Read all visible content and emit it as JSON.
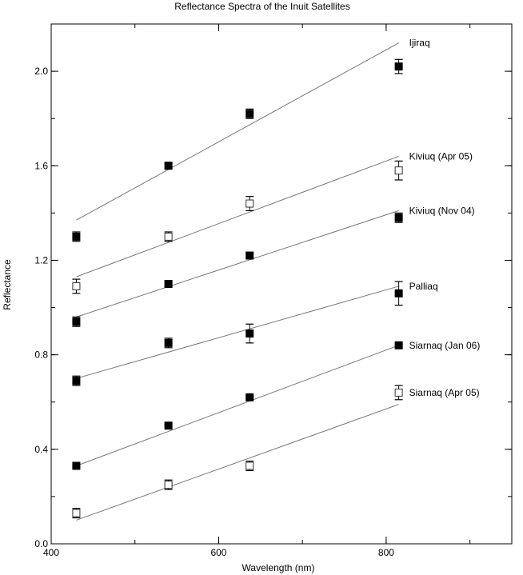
{
  "chart_data": {
    "type": "scatter",
    "title": "Reflectance Spectra of the Inuit Satellites",
    "xlabel": "Wavelength (nm)",
    "ylabel": "Reflectance",
    "xlim": [
      400,
      950
    ],
    "ylim": [
      0.0,
      2.2
    ],
    "xticks": [
      400,
      600,
      800
    ],
    "yticks": [
      0.0,
      0.4,
      0.8,
      1.2,
      1.6,
      2.0
    ],
    "xtick_labels": [
      "400",
      "600",
      "800"
    ],
    "ytick_labels": [
      "0.0",
      "0.4",
      "0.8",
      "1.2",
      "1.6",
      "2.0"
    ],
    "x_minor_step": 100,
    "y_minor_step": 0.2,
    "grid": false,
    "marker_colors": {
      "filled": "#000000",
      "open": "#ffffff",
      "line": "#777777"
    },
    "series": [
      {
        "name": "Ijiraq",
        "marker": "filled",
        "x": [
          430,
          540,
          637,
          815
        ],
        "y": [
          1.3,
          1.6,
          1.82,
          2.02
        ],
        "err": [
          0.02,
          0.01,
          0.02,
          0.03
        ],
        "fit": [
          [
            430,
            1.37
          ],
          [
            815,
            2.12
          ]
        ]
      },
      {
        "name": "Kiviuq (Apr 05)",
        "marker": "open",
        "x": [
          430,
          540,
          637,
          815
        ],
        "y": [
          1.09,
          1.3,
          1.44,
          1.58
        ],
        "err": [
          0.03,
          0.02,
          0.03,
          0.04
        ],
        "fit": [
          [
            430,
            1.13
          ],
          [
            815,
            1.64
          ]
        ]
      },
      {
        "name": "Kiviuq (Nov 04)",
        "marker": "filled",
        "x": [
          430,
          540,
          637,
          815
        ],
        "y": [
          0.94,
          1.1,
          1.22,
          1.38
        ],
        "err": [
          0.02,
          0.01,
          0.01,
          0.02
        ],
        "fit": [
          [
            430,
            0.96
          ],
          [
            815,
            1.41
          ]
        ]
      },
      {
        "name": "Palliaq",
        "marker": "filled",
        "x": [
          430,
          540,
          637,
          815
        ],
        "y": [
          0.69,
          0.85,
          0.89,
          1.06
        ],
        "err": [
          0.02,
          0.02,
          0.04,
          0.05
        ],
        "fit": [
          [
            430,
            0.7
          ],
          [
            815,
            1.09
          ]
        ]
      },
      {
        "name": "Siarnaq (Jan 06)",
        "marker": "filled",
        "x": [
          430,
          540,
          637,
          815
        ],
        "y": [
          0.33,
          0.5,
          0.62,
          0.84
        ],
        "err": [
          0.005,
          0.005,
          0.005,
          0.005
        ],
        "fit": [
          [
            430,
            0.33
          ],
          [
            815,
            0.84
          ]
        ]
      },
      {
        "name": "Siarnaq (Apr 05)",
        "marker": "open",
        "x": [
          430,
          540,
          637,
          815
        ],
        "y": [
          0.13,
          0.25,
          0.33,
          0.64
        ],
        "err": [
          0.02,
          0.02,
          0.02,
          0.03
        ],
        "fit": [
          [
            430,
            0.1
          ],
          [
            815,
            0.59
          ]
        ]
      }
    ]
  }
}
